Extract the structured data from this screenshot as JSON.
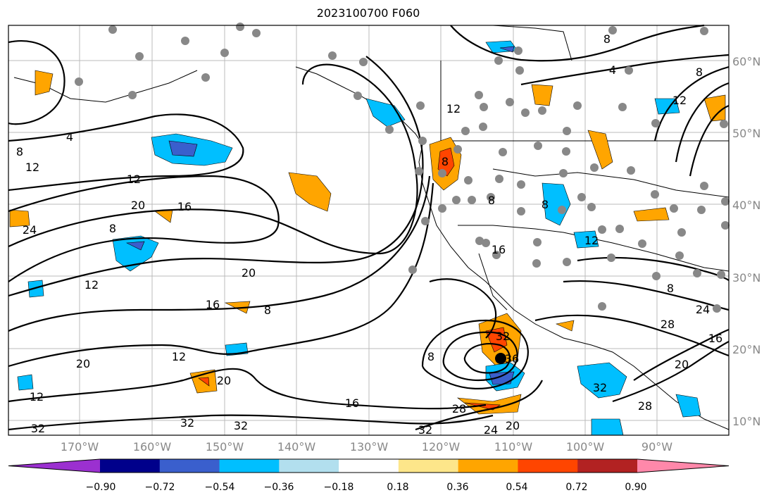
{
  "title": "2023100700 F060",
  "lat_labels": [
    "60°N",
    "50°N",
    "40°N",
    "30°N",
    "20°N",
    "10°N"
  ],
  "lon_labels": [
    "170°W",
    "160°W",
    "150°W",
    "140°W",
    "130°W",
    "120°W",
    "110°W",
    "100°W",
    "90°W"
  ],
  "colorbar": {
    "tick_labels": [
      "−0.90",
      "−0.72",
      "−0.54",
      "−0.36",
      "−0.18",
      "0.18",
      "0.36",
      "0.54",
      "0.72",
      "0.90"
    ],
    "colors": [
      "#9b30d0",
      "#00008b",
      "#3a5fcd",
      "#00bfff",
      "#b2dfee",
      "#ffffff",
      "#fde68a",
      "#ffa500",
      "#ff4500",
      "#b22222",
      "#ff88aa"
    ]
  },
  "contour_labels": [
    "4",
    "8",
    "12",
    "16",
    "20",
    "24",
    "28",
    "32",
    "36"
  ],
  "colors": {
    "gray_grid": "#aaaaaa",
    "stations": "#888888",
    "center_marker": "#000000"
  }
}
